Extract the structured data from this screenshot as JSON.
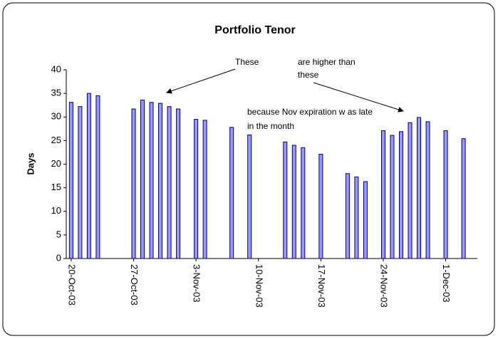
{
  "chart_data": {
    "type": "bar",
    "title": "Portfolio Tenor",
    "y_label": "Days",
    "x": [
      "2003-10-20",
      "2003-10-21",
      "2003-10-22",
      "2003-10-23",
      "2003-10-27",
      "2003-10-28",
      "2003-10-29",
      "2003-10-30",
      "2003-10-31",
      "2003-11-01",
      "2003-11-03",
      "2003-11-04",
      "2003-11-07",
      "2003-11-09",
      "2003-11-13",
      "2003-11-14",
      "2003-11-15",
      "2003-11-17",
      "2003-11-20",
      "2003-11-21",
      "2003-11-22",
      "2003-11-24",
      "2003-11-25",
      "2003-11-26",
      "2003-11-27",
      "2003-11-28",
      "2003-11-29",
      "2003-12-01",
      "2003-12-03"
    ],
    "values": [
      33.1,
      32.2,
      35,
      34.5,
      31.7,
      33.6,
      33.1,
      32.9,
      32.2,
      31.7,
      29.5,
      29.3,
      27.8,
      26.2,
      24.7,
      24,
      23.5,
      22.1,
      18,
      17.3,
      16.3,
      27.1,
      26.1,
      26.9,
      28.8,
      29.9,
      29,
      27.1,
      25.4
    ],
    "color": "#9999ff",
    "edge_color": "#000080",
    "xlim": [
      "2003-10-20",
      "2003-12-04"
    ],
    "xticks": [
      {
        "value": "2003-10-20",
        "label": "20-Oct-03"
      },
      {
        "value": "2003-10-27",
        "label": "27-Oct-03"
      },
      {
        "value": "2003-11-03",
        "label": "3-Nov-03"
      },
      {
        "value": "2003-11-10",
        "label": "10-Nov-03"
      },
      {
        "value": "2003-11-17",
        "label": "17-Nov-03"
      },
      {
        "value": "2003-11-24",
        "label": "24-Nov-03"
      },
      {
        "value": "2003-12-01",
        "label": "1-Dec-03"
      }
    ],
    "ylim": [
      0,
      40
    ],
    "yticks": [
      0,
      5,
      10,
      15,
      20,
      25,
      30,
      35,
      40
    ],
    "grid": false,
    "annotations": [
      "These",
      "are higher than",
      "these",
      "because Nov expiration w as late",
      "in the month"
    ]
  }
}
